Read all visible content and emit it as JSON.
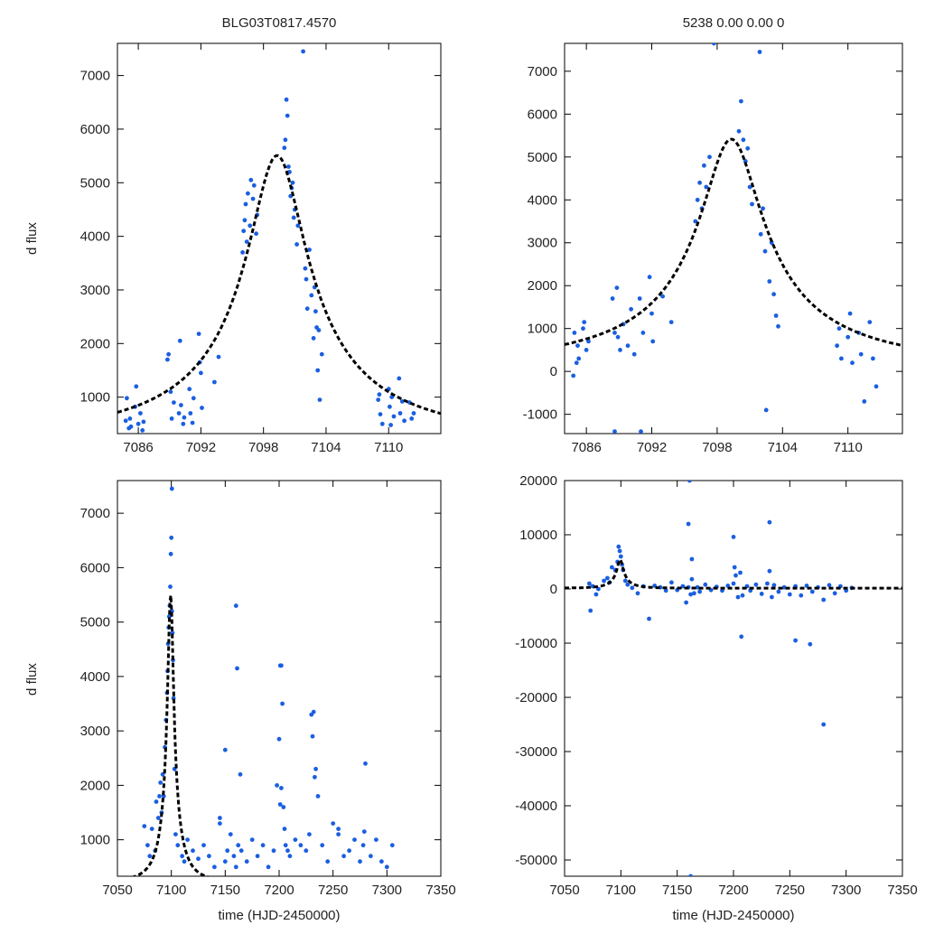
{
  "figure": {
    "title_left": "BLG03T0817.4570",
    "title_right": "5238   0.00   0.00   0",
    "ylabel": "d flux",
    "xlabel": "time (HJD-2450000)"
  },
  "colors": {
    "points": "#1a5fe0",
    "model": "#000000",
    "frame": "#000000"
  },
  "chart_data": [
    {
      "id": "top-left",
      "type": "scatter",
      "title": "BLG03T0817.4570",
      "xlabel": "",
      "ylabel": "d flux",
      "xlim": [
        7084,
        7115
      ],
      "ylim": [
        320,
        7600
      ],
      "xticks": [
        7086,
        7092,
        7098,
        7104,
        7110
      ],
      "yticks": [
        1000,
        2000,
        3000,
        4000,
        5000,
        6000,
        7000
      ],
      "model": {
        "t0": 7099.3,
        "u0": 0.14,
        "tE": 20,
        "fs": 850,
        "fb": 240
      },
      "series": [
        {
          "name": "data",
          "x": [
            7084.8,
            7084.9,
            7085.1,
            7085.2,
            7085.3,
            7085.7,
            7085.8,
            7086.0,
            7086.2,
            7086.4,
            7086.5,
            7088.8,
            7088.9,
            7089.1,
            7089.2,
            7089.4,
            7090.0,
            7090.1,
            7090.3,
            7090.4,
            7090.9,
            7091.0,
            7091.2,
            7091.3,
            7091.8,
            7091.9,
            7092.0,
            7092.1,
            7093.3,
            7093.7,
            7096.0,
            7096.1,
            7096.2,
            7096.3,
            7096.4,
            7096.5,
            7096.7,
            7096.8,
            7097.0,
            7097.1,
            7097.3,
            7097.4,
            7100.0,
            7100.1,
            7100.2,
            7100.3,
            7100.4,
            7100.5,
            7100.6,
            7100.7,
            7100.8,
            7100.9,
            7101.0,
            7101.2,
            7101.3,
            7102.0,
            7102.1,
            7102.2,
            7102.4,
            7102.6,
            7102.8,
            7102.9,
            7103.0,
            7103.1,
            7103.2,
            7103.3,
            7103.4,
            7103.6,
            7109.0,
            7109.1,
            7109.2,
            7109.4,
            7110.0,
            7110.1,
            7110.2,
            7110.3,
            7110.5,
            7111.0,
            7111.1,
            7111.3,
            7111.5,
            7112.0,
            7112.2,
            7112.4,
            7101.8,
            7089.9
          ],
          "y": [
            560,
            980,
            420,
            600,
            450,
            820,
            1200,
            500,
            700,
            380,
            540,
            1700,
            1800,
            1100,
            600,
            900,
            2050,
            850,
            500,
            620,
            1150,
            700,
            520,
            980,
            2180,
            1650,
            1450,
            800,
            1280,
            1750,
            3700,
            4100,
            4300,
            4600,
            3900,
            4800,
            4200,
            5050,
            4700,
            4950,
            4050,
            4400,
            5650,
            5800,
            6550,
            6250,
            5300,
            5200,
            4750,
            4900,
            5000,
            4350,
            4500,
            3850,
            4200,
            3400,
            3200,
            2650,
            3750,
            2900,
            2100,
            3050,
            2600,
            2300,
            1500,
            2250,
            950,
            1800,
            950,
            1050,
            680,
            500,
            1150,
            820,
            480,
            1000,
            640,
            1350,
            700,
            920,
            560,
            900,
            600,
            700,
            7450,
            700
          ]
        }
      ]
    },
    {
      "id": "top-right",
      "type": "scatter",
      "title": "5238   0.00   0.00   0",
      "xlabel": "",
      "ylabel": "",
      "xlim": [
        7084,
        7115
      ],
      "ylim": [
        -1450,
        7650
      ],
      "xticks": [
        7086,
        7092,
        7098,
        7104,
        7110
      ],
      "yticks": [
        -1000,
        0,
        1000,
        2000,
        3000,
        4000,
        5000,
        6000,
        7000
      ],
      "model": {
        "t0": 7099.3,
        "u0": 0.14,
        "tE": 20,
        "fs": 850,
        "fb": 150
      },
      "series": [
        {
          "name": "data",
          "x": [
            7084.8,
            7084.9,
            7085.1,
            7085.2,
            7085.3,
            7085.7,
            7085.8,
            7086.0,
            7086.2,
            7088.4,
            7088.6,
            7088.8,
            7088.9,
            7089.1,
            7089.4,
            7089.8,
            7090.1,
            7090.4,
            7090.9,
            7091.2,
            7091.8,
            7092.0,
            7092.1,
            7093.0,
            7093.8,
            7096.0,
            7096.2,
            7096.4,
            7096.6,
            7096.8,
            7097.0,
            7097.3,
            7100.0,
            7100.2,
            7100.4,
            7100.6,
            7100.8,
            7101.0,
            7101.2,
            7102.0,
            7102.2,
            7102.4,
            7102.8,
            7103.0,
            7103.2,
            7103.4,
            7103.6,
            7109.0,
            7109.2,
            7109.4,
            7110.0,
            7110.2,
            7110.4,
            7111.0,
            7111.2,
            7111.5,
            7112.0,
            7112.3,
            7112.6,
            7102.5,
            7097.7,
            7101.9,
            7088.6,
            7091.0
          ],
          "y": [
            -100,
            900,
            200,
            600,
            300,
            1000,
            1150,
            500,
            700,
            1700,
            900,
            1950,
            800,
            500,
            1100,
            600,
            1450,
            400,
            1700,
            900,
            2200,
            1350,
            700,
            1750,
            1150,
            3500,
            4000,
            4400,
            3800,
            4800,
            4300,
            5000,
            5600,
            6300,
            5400,
            4900,
            5200,
            4300,
            3900,
            3200,
            3800,
            2800,
            2100,
            3000,
            1800,
            1300,
            1050,
            600,
            1000,
            300,
            800,
            1350,
            200,
            900,
            400,
            -700,
            1150,
            300,
            -350,
            -900,
            7650,
            7450,
            -1400,
            -1400
          ]
        }
      ]
    },
    {
      "id": "bottom-left",
      "type": "scatter",
      "title": "",
      "xlabel": "time (HJD-2450000)",
      "ylabel": "d flux",
      "xlim": [
        7050,
        7350
      ],
      "ylim": [
        330,
        7600
      ],
      "xticks": [
        7050,
        7100,
        7150,
        7200,
        7250,
        7300,
        7350
      ],
      "yticks": [
        1000,
        2000,
        3000,
        4000,
        5000,
        6000,
        7000
      ],
      "model": {
        "t0": 7099.3,
        "u0": 0.14,
        "tE": 20,
        "fs": 850,
        "fb": 240
      },
      "series": [
        {
          "name": "data",
          "x": [
            7075,
            7078,
            7080,
            7082,
            7085,
            7086,
            7088,
            7089,
            7090,
            7091,
            7092,
            7093,
            7094,
            7095,
            7096,
            7096.5,
            7097,
            7097.5,
            7098,
            7098.5,
            7099,
            7099.5,
            7100,
            7100.5,
            7101,
            7101.5,
            7102,
            7103,
            7104,
            7106,
            7110,
            7112,
            7115,
            7120,
            7125,
            7130,
            7135,
            7140,
            7145,
            7150,
            7152,
            7155,
            7158,
            7160,
            7162,
            7165,
            7170,
            7175,
            7180,
            7185,
            7190,
            7195,
            7198,
            7200,
            7201,
            7202,
            7203,
            7204,
            7205,
            7206,
            7208,
            7210,
            7215,
            7220,
            7225,
            7228,
            7230,
            7232,
            7234,
            7236,
            7240,
            7245,
            7250,
            7255,
            7260,
            7265,
            7270,
            7275,
            7278,
            7280,
            7285,
            7290,
            7295,
            7300,
            7305,
            7100.5,
            7160,
            7161,
            7164,
            7150,
            7279,
            7201,
            7202,
            7231,
            7233,
            7145,
            7255
          ],
          "y": [
            1250,
            900,
            700,
            1200,
            800,
            1700,
            1400,
            1800,
            2050,
            1500,
            2200,
            1800,
            2700,
            3200,
            3700,
            4100,
            4600,
            4900,
            5100,
            5300,
            5650,
            6250,
            6550,
            5200,
            4800,
            4300,
            3600,
            2300,
            1100,
            900,
            700,
            600,
            1000,
            800,
            650,
            900,
            700,
            500,
            1400,
            600,
            800,
            1100,
            700,
            500,
            900,
            800,
            600,
            1000,
            700,
            900,
            500,
            800,
            2000,
            2850,
            4200,
            4200,
            3500,
            1600,
            1200,
            900,
            800,
            700,
            1000,
            900,
            800,
            1100,
            3300,
            3350,
            2300,
            1800,
            900,
            600,
            1300,
            1200,
            700,
            800,
            1000,
            600,
            900,
            2400,
            700,
            1000,
            600,
            500,
            900,
            7450,
            5300,
            4150,
            2200,
            2650,
            1150,
            1650,
            1950,
            2900,
            2150,
            1300,
            1100
          ]
        }
      ]
    },
    {
      "id": "bottom-right",
      "type": "scatter",
      "title": "",
      "xlabel": "time (HJD-2450000)",
      "ylabel": "",
      "xlim": [
        7050,
        7350
      ],
      "ylim": [
        -53000,
        20000
      ],
      "xticks": [
        7050,
        7100,
        7150,
        7200,
        7250,
        7300,
        7350
      ],
      "yticks": [
        -50000,
        -40000,
        -30000,
        -20000,
        -10000,
        0,
        10000,
        20000
      ],
      "model": {
        "t0": 7099.3,
        "u0": 0.14,
        "tE": 20,
        "fs": 850,
        "fb": 150
      },
      "series": [
        {
          "name": "data",
          "x": [
            7072,
            7073,
            7075,
            7078,
            7080,
            7085,
            7088,
            7090,
            7092,
            7095,
            7097,
            7098,
            7099,
            7100,
            7101,
            7102,
            7104,
            7106,
            7110,
            7115,
            7120,
            7125,
            7130,
            7135,
            7140,
            7145,
            7150,
            7155,
            7158,
            7160,
            7162,
            7163,
            7165,
            7168,
            7170,
            7175,
            7180,
            7185,
            7190,
            7195,
            7200,
            7201,
            7202,
            7204,
            7206,
            7208,
            7212,
            7215,
            7220,
            7225,
            7230,
            7232,
            7234,
            7236,
            7240,
            7245,
            7250,
            7255,
            7260,
            7265,
            7270,
            7275,
            7280,
            7285,
            7290,
            7295,
            7300,
            7305,
            7160,
            7161,
            7163,
            7232,
            7200,
            7207,
            7255,
            7268,
            7280,
            7162
          ],
          "y": [
            1000,
            -4000,
            500,
            -1000,
            0,
            1500,
            2000,
            1200,
            4000,
            3500,
            5000,
            7800,
            7000,
            6000,
            4500,
            3500,
            1500,
            800,
            200,
            -800,
            500,
            -5500,
            600,
            300,
            -300,
            1200,
            -200,
            500,
            -2500,
            300,
            -1000,
            1800,
            -800,
            300,
            -500,
            800,
            -200,
            400,
            -300,
            600,
            1000,
            4000,
            2500,
            -1500,
            3000,
            -1200,
            500,
            -300,
            800,
            -900,
            1000,
            3300,
            -1500,
            700,
            -500,
            300,
            -1000,
            500,
            -1200,
            600,
            -500,
            300,
            -2000,
            700,
            -800,
            500,
            -300,
            200,
            12000,
            20000,
            5500,
            12300,
            9600,
            -8800,
            -9500,
            -10200,
            -25000,
            -53000
          ]
        }
      ]
    }
  ]
}
